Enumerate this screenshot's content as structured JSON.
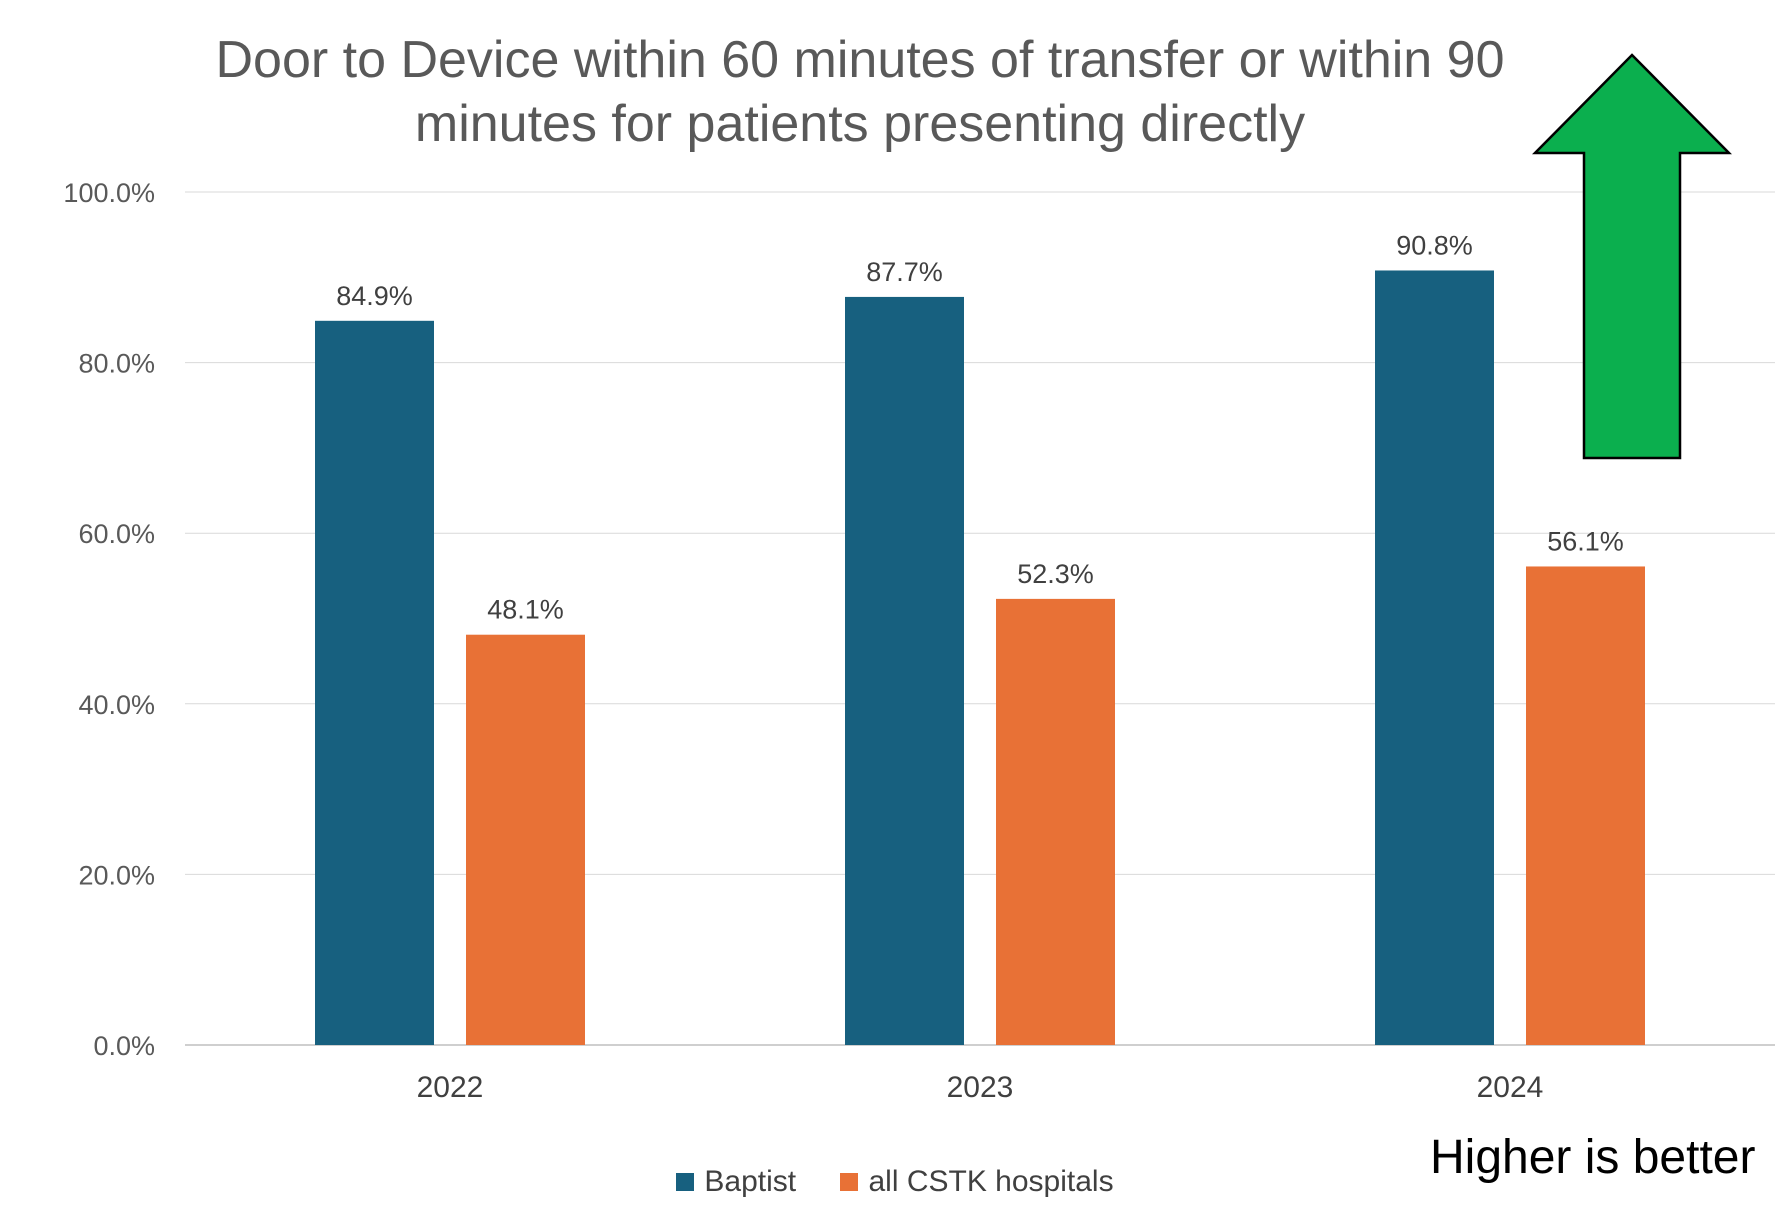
{
  "chart_data": {
    "type": "bar",
    "title": "Door to Device within 60 minutes of transfer or within 90 minutes for patients presenting directly",
    "xlabel": "",
    "ylabel": "",
    "categories": [
      "2022",
      "2023",
      "2024"
    ],
    "series": [
      {
        "name": "Baptist",
        "values": [
          84.9,
          87.7,
          90.8
        ],
        "color": "#17607F",
        "labels": [
          "84.9%",
          "87.7%",
          "90.8%"
        ]
      },
      {
        "name": "all CSTK hospitals",
        "values": [
          48.1,
          52.3,
          56.1
        ],
        "color": "#E87136",
        "labels": [
          "48.1%",
          "52.3%",
          "56.1%"
        ]
      }
    ],
    "ylim": [
      0,
      100
    ],
    "yticks": [
      0,
      20,
      40,
      60,
      80,
      100
    ],
    "ytick_labels": [
      "0.0%",
      "20.0%",
      "40.0%",
      "60.0%",
      "80.0%",
      "100.0%"
    ],
    "grid": true,
    "legend_position": "bottom",
    "annotation": "Higher is better",
    "arrow": {
      "direction": "up",
      "color": "#0BAF4E"
    }
  }
}
